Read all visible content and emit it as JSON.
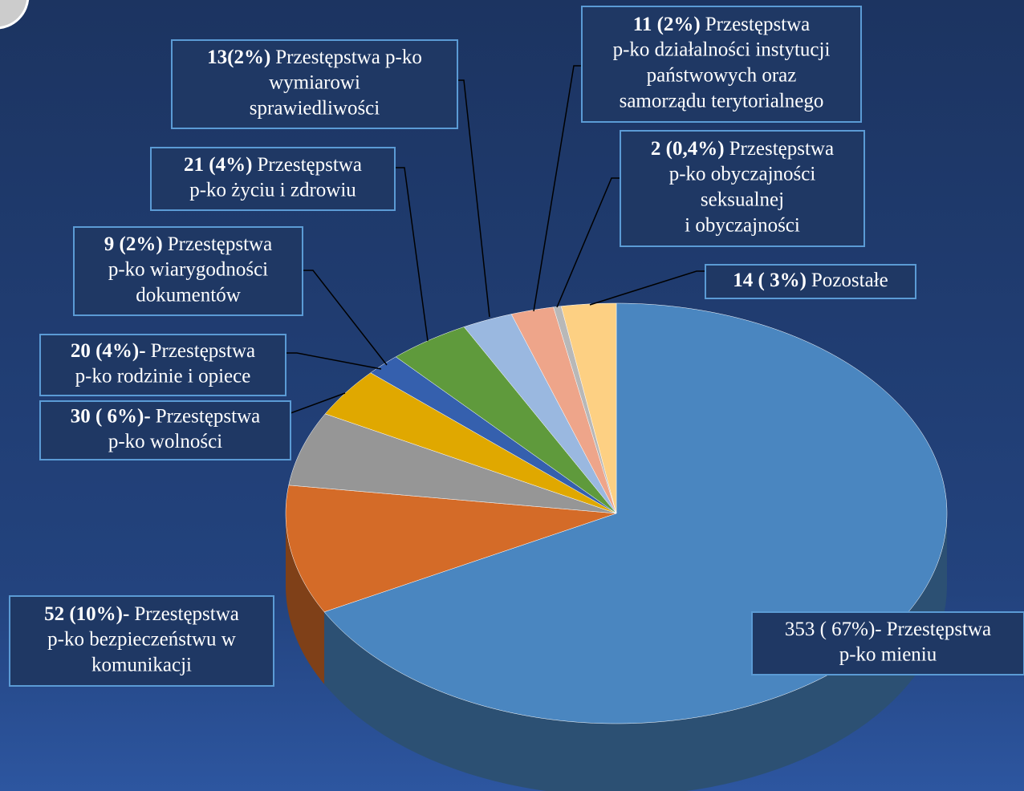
{
  "chart_data": {
    "type": "pie3d",
    "values": [
      353,
      52,
      30,
      20,
      9,
      21,
      13,
      11,
      2,
      14
    ],
    "value_labels": [
      "353 ( 67%)-",
      "52 (10%)-",
      "30 ( 6%)-",
      "20 (4%)-",
      "9 (2%)",
      "21 (4%)",
      "13(2%)",
      "11 (2%)",
      "2 (0,4%)",
      "14 ( 3%)"
    ],
    "categories": [
      [
        "Przestępstwa",
        "p-ko mieniu"
      ],
      [
        "Przestępstwa",
        "p-ko bezpieczeństwu w",
        "komunikacji"
      ],
      [
        "Przestępstwa",
        "p-ko wolności"
      ],
      [
        "Przestępstwa",
        "p-ko rodzinie i opiece"
      ],
      [
        "Przestępstwa",
        "p-ko wiarygodności",
        "dokumentów"
      ],
      [
        "Przestępstwa",
        "p-ko życiu i zdrowiu"
      ],
      [
        "Przestępstwa p-ko",
        "wymiarowi",
        "sprawiedliwości"
      ],
      [
        "Przestępstwa",
        "p-ko działalności instytucji",
        "państwowych oraz",
        "samorządu terytorialnego"
      ],
      [
        "Przestępstwa",
        "p-ko obyczajności",
        "seksualnej",
        "i obyczajności"
      ],
      [
        "Pozostałe"
      ]
    ],
    "colors": [
      "#4a86c0",
      "#d46b28",
      "#969696",
      "#e0a800",
      "#3560ae",
      "#5f9a3c",
      "#9ab8e0",
      "#eea58a",
      "#b8b8b8",
      "#fdd083"
    ]
  }
}
